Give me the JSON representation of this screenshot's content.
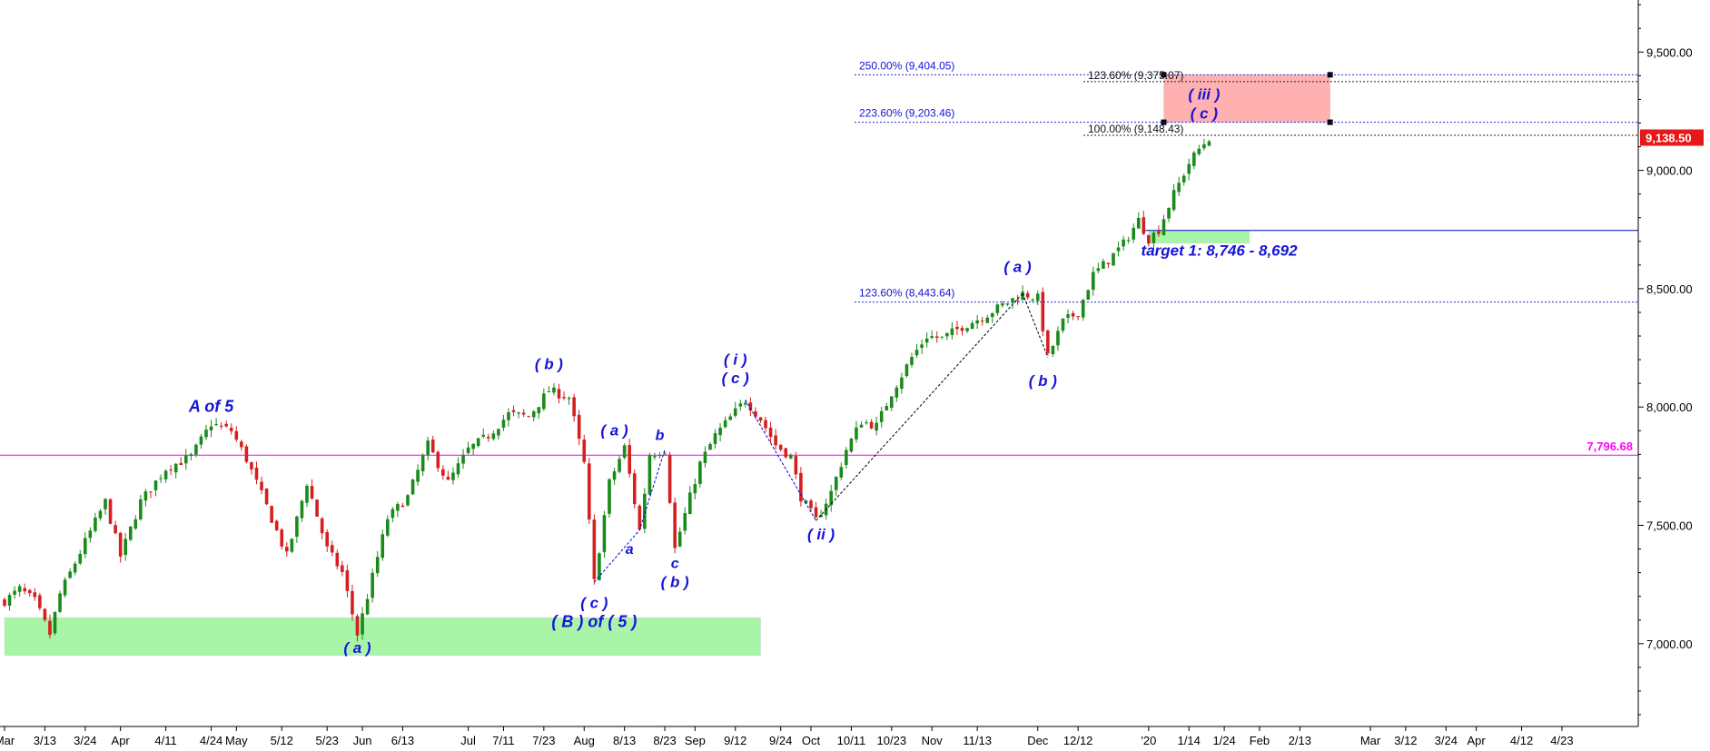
{
  "chart_data": {
    "type": "candlestick",
    "y_axis": {
      "ylim": [
        6650,
        9720
      ],
      "ticks": [
        "7,000.00",
        "7,500.00",
        "8,000.00",
        "8,500.00",
        "9,000.00",
        "9,500.00"
      ],
      "tick_values": [
        7000,
        7500,
        8000,
        8500,
        9000,
        9500
      ]
    },
    "x_axis": {
      "ticks": [
        "Mar",
        "3/13",
        "3/24",
        "Apr",
        "4/11",
        "4/24",
        "May",
        "5/12",
        "5/23",
        "Jun",
        "6/13",
        "Jul",
        "7/11",
        "7/23",
        "Aug",
        "8/13",
        "8/23",
        "Sep",
        "9/12",
        "9/24",
        "Oct",
        "10/11",
        "10/23",
        "Nov",
        "11/13",
        "Dec",
        "12/12",
        "'20",
        "1/14",
        "1/24",
        "Feb",
        "2/13",
        "Mar",
        "3/12",
        "3/24",
        "Apr",
        "4/12",
        "4/23"
      ],
      "tick_index": [
        0,
        8,
        16,
        23,
        32,
        41,
        46,
        55,
        64,
        71,
        79,
        92,
        99,
        107,
        115,
        123,
        131,
        137,
        145,
        154,
        160,
        168,
        176,
        184,
        193,
        205,
        213,
        227,
        235,
        242,
        249,
        257,
        271,
        278,
        286,
        292,
        301,
        309
      ]
    },
    "price_path": [
      [
        0,
        7180
      ],
      [
        3,
        7230
      ],
      [
        6,
        7180
      ],
      [
        9,
        7040
      ],
      [
        11,
        7210
      ],
      [
        16,
        7430
      ],
      [
        20,
        7600
      ],
      [
        23,
        7370
      ],
      [
        27,
        7600
      ],
      [
        32,
        7740
      ],
      [
        37,
        7790
      ],
      [
        41,
        7930
      ],
      [
        45,
        7900
      ],
      [
        48,
        7780
      ],
      [
        52,
        7580
      ],
      [
        56,
        7370
      ],
      [
        60,
        7680
      ],
      [
        64,
        7400
      ],
      [
        67,
        7300
      ],
      [
        70,
        7040
      ],
      [
        72,
        7200
      ],
      [
        76,
        7530
      ],
      [
        80,
        7620
      ],
      [
        84,
        7840
      ],
      [
        88,
        7680
      ],
      [
        92,
        7820
      ],
      [
        96,
        7880
      ],
      [
        100,
        7970
      ],
      [
        104,
        7960
      ],
      [
        108,
        8070
      ],
      [
        112,
        8040
      ],
      [
        115,
        7760
      ],
      [
        117,
        7260
      ],
      [
        120,
        7680
      ],
      [
        123,
        7830
      ],
      [
        126,
        7480
      ],
      [
        128,
        7800
      ],
      [
        131,
        7820
      ],
      [
        133,
        7400
      ],
      [
        136,
        7620
      ],
      [
        138,
        7760
      ],
      [
        141,
        7880
      ],
      [
        143,
        7930
      ],
      [
        147,
        8030
      ],
      [
        150,
        7950
      ],
      [
        153,
        7840
      ],
      [
        156,
        7790
      ],
      [
        158,
        7620
      ],
      [
        161,
        7520
      ],
      [
        164,
        7640
      ],
      [
        167,
        7820
      ],
      [
        170,
        7940
      ],
      [
        173,
        7920
      ],
      [
        176,
        8060
      ],
      [
        180,
        8210
      ],
      [
        183,
        8300
      ],
      [
        186,
        8290
      ],
      [
        190,
        8340
      ],
      [
        194,
        8380
      ],
      [
        198,
        8430
      ],
      [
        202,
        8480
      ],
      [
        205,
        8460
      ],
      [
        207,
        8210
      ],
      [
        210,
        8360
      ],
      [
        213,
        8400
      ],
      [
        216,
        8560
      ],
      [
        219,
        8620
      ],
      [
        222,
        8690
      ],
      [
        225,
        8790
      ],
      [
        227,
        8710
      ],
      [
        229,
        8750
      ],
      [
        232,
        8900
      ],
      [
        235,
        9030
      ],
      [
        237,
        9090
      ],
      [
        239,
        9138
      ]
    ],
    "last_price": "9,138.50",
    "horizontal_lines": [
      {
        "value": 7796.68,
        "label": "7,796.68",
        "color": "#ff00ff"
      },
      {
        "value": 8746,
        "label": "",
        "color": "#0000cc"
      }
    ],
    "fib_levels_left": [
      {
        "label": "250.00% (9,404.05)",
        "value": 9404.05
      },
      {
        "label": "223.60% (9,203.46)",
        "value": 9203.46
      },
      {
        "label": "123.60% (8,443.64)",
        "value": 8443.64
      }
    ],
    "fib_levels_right": [
      {
        "label": "123.60% (9,375.07)",
        "value": 9375.07
      },
      {
        "label": "100.00% (9,148.43)",
        "value": 9148.43
      }
    ],
    "zones": [
      {
        "name": "support-zone-green-low",
        "color": "#a8f5a8",
        "x_from": 0,
        "x_to": 150,
        "y_from": 6950,
        "y_to": 7110
      },
      {
        "name": "support-zone-green-target",
        "color": "#a8f5a8",
        "x_from": 227,
        "x_to": 247,
        "y_from": 8692,
        "y_to": 8746
      },
      {
        "name": "target-zone-red",
        "color": "#ffb0b0",
        "x_from": 230,
        "x_to": 263,
        "y_from": 9203.46,
        "y_to": 9404.05
      }
    ],
    "annotations": [
      {
        "text": "A of 5",
        "x": 41,
        "y": 7980,
        "size": 18,
        "italic": false
      },
      {
        "text": "( b )",
        "x": 108,
        "y": 8160,
        "size": 17
      },
      {
        "text": "( a )",
        "x": 121,
        "y": 7880,
        "size": 17
      },
      {
        "text": "b",
        "x": 130,
        "y": 7860,
        "size": 16
      },
      {
        "text": "a",
        "x": 124,
        "y": 7380,
        "size": 16
      },
      {
        "text": "c",
        "x": 133,
        "y": 7320,
        "size": 16
      },
      {
        "text": "( b )",
        "x": 133,
        "y": 7240,
        "size": 17
      },
      {
        "text": "( c )",
        "x": 117,
        "y": 7150,
        "size": 17
      },
      {
        "text": "( B ) of ( 5 )",
        "x": 117,
        "y": 7070,
        "size": 18,
        "italic": false
      },
      {
        "text": "( a )",
        "x": 70,
        "y": 6960,
        "size": 17
      },
      {
        "text": "( i )",
        "x": 145,
        "y": 8180,
        "size": 17
      },
      {
        "text": "( c )",
        "x": 145,
        "y": 8100,
        "size": 17
      },
      {
        "text": "( ii )",
        "x": 162,
        "y": 7440,
        "size": 17
      },
      {
        "text": "( a )",
        "x": 201,
        "y": 8570,
        "size": 17
      },
      {
        "text": "( b )",
        "x": 206,
        "y": 8090,
        "size": 17
      },
      {
        "text": "( iii )",
        "x": 238,
        "y": 9300,
        "size": 17
      },
      {
        "text": "( c )",
        "x": 238,
        "y": 9220,
        "size": 17
      },
      {
        "text": "target 1: 8,746 - 8,692",
        "x": 241,
        "y": 8640,
        "size": 17
      }
    ],
    "wave_lines": [
      {
        "points": [
          [
            117,
            7260
          ],
          [
            126,
            7480
          ],
          [
            131,
            7820
          ]
        ],
        "color": "#0000cc"
      },
      {
        "points": [
          [
            147,
            8030
          ],
          [
            161,
            7520
          ]
        ],
        "color": "#0000cc"
      },
      {
        "points": [
          [
            161,
            7520
          ],
          [
            202,
            8480
          ]
        ],
        "color": "#000000"
      },
      {
        "points": [
          [
            202,
            8480
          ],
          [
            207,
            8210
          ]
        ],
        "color": "#000000"
      }
    ]
  }
}
